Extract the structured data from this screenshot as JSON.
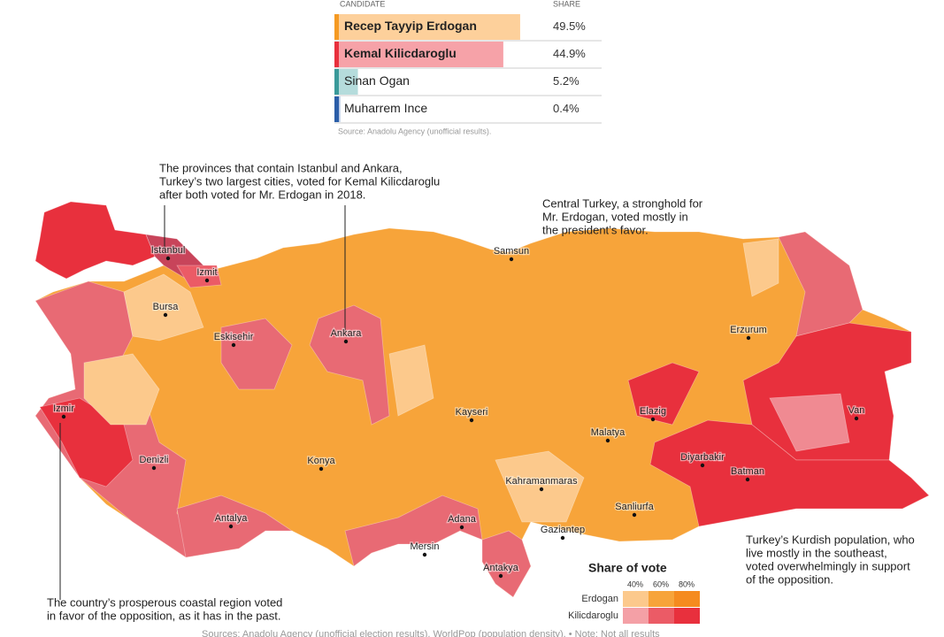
{
  "table": {
    "header": [
      "CANDIDATE",
      "SHARE"
    ],
    "rows": [
      {
        "name": "Recep Tayyip Erdogan",
        "share": 49.5,
        "share_label": "49.5%",
        "color": "#f59a23",
        "bar_color": "#fdd09b",
        "bold": true
      },
      {
        "name": "Kemal Kilicdaroglu",
        "share": 44.9,
        "share_label": "44.9%",
        "color": "#e8303d",
        "bar_color": "#f6a2a8",
        "bold": true
      },
      {
        "name": "Sinan Ogan",
        "share": 5.2,
        "share_label": "5.2%",
        "color": "#3a9a9a",
        "bar_color": "#b5dcdc",
        "bold": false
      },
      {
        "name": "Muharrem Ince",
        "share": 0.4,
        "share_label": "0.4%",
        "color": "#2b5ea8",
        "bar_color": "#b8c9e6",
        "bold": false
      }
    ],
    "source": "Source: Anadolu Agency (unofficial results)."
  },
  "annotations": [
    {
      "lines": [
        "The provinces that contain Istanbul and Ankara,",
        "Turkey’s two largest cities, voted for Kemal Kilicdaroglu",
        "after both voted for Mr. Erdogan in 2018."
      ]
    },
    {
      "lines": [
        "Central Turkey, a stronghold for",
        "Mr. Erdogan, voted mostly in",
        "the president’s favor."
      ]
    },
    {
      "lines": [
        "Turkey’s Kurdish population, who",
        "live mostly in the southeast,",
        "voted overwhelmingly in support",
        "of the opposition."
      ]
    },
    {
      "lines": [
        "The country’s prosperous coastal region voted",
        "in favor of the opposition, as it has in the past."
      ]
    }
  ],
  "cities": [
    "Istanbul",
    "Izmit",
    "Bursa",
    "Eskisehir",
    "Ankara",
    "Samsun",
    "Erzurum",
    "Izmir",
    "Kayseri",
    "Elazig",
    "Van",
    "Malatya",
    "Denizli",
    "Konya",
    "Diyarbakir",
    "Batman",
    "Kahramanmaras",
    "Sanliurfa",
    "Antalya",
    "Adana",
    "Gaziantep",
    "Mersin",
    "Antakya"
  ],
  "legend": {
    "title": "Share of vote",
    "ticks": [
      "40%",
      "60%",
      "80%"
    ],
    "rows": [
      {
        "name": "Erdogan",
        "colors": [
          "#fcc98c",
          "#f7a43a",
          "#f58b1f"
        ]
      },
      {
        "name": "Kilicdaroglu",
        "colors": [
          "#f4a0a6",
          "#eb5b66",
          "#e8303d"
        ]
      }
    ]
  },
  "footer": "Sources: Anadolu Agency (unofficial election results), WorldPop (population density).  •  Note: Not all results"
}
